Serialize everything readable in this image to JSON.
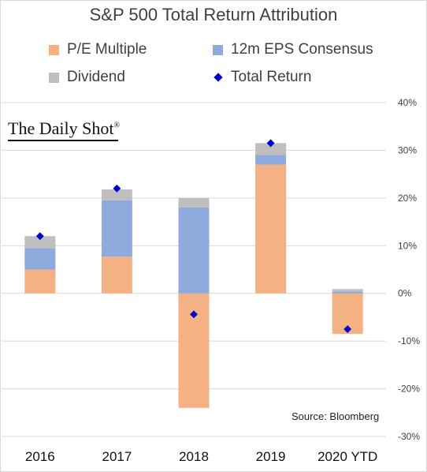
{
  "chart_data": {
    "type": "bar",
    "stacked": true,
    "title": "S&P 500 Total Return Attribution",
    "categories": [
      "2016",
      "2017",
      "2018",
      "2019",
      "2020 YTD"
    ],
    "series": [
      {
        "name": "P/E Multiple",
        "color": "#f4b183",
        "values": [
          5,
          7.7,
          -24,
          27,
          -8.5
        ]
      },
      {
        "name": "12m EPS Consensus",
        "color": "#8faadc",
        "values": [
          4.5,
          11.8,
          18,
          2,
          0.4
        ]
      },
      {
        "name": "Dividend",
        "color": "#bfbfbf",
        "values": [
          2.5,
          2.3,
          2,
          2.5,
          0.5
        ]
      }
    ],
    "total_return": {
      "name": "Total Return",
      "color": "#0000cc",
      "values": [
        12,
        22,
        -4.4,
        31.5,
        -7.5
      ]
    },
    "y_axis": {
      "position": "right",
      "ylim": [
        -30,
        40
      ],
      "ticks": [
        -30,
        -20,
        -10,
        0,
        10,
        20,
        30,
        40
      ],
      "tick_labels": [
        "-30%",
        "-20%",
        "-10%",
        "0%",
        "10%",
        "20%",
        "30%",
        "40%"
      ]
    },
    "grid": true,
    "legend_position": "top"
  },
  "watermark": "The Daily Shot",
  "watermark_mark": "®",
  "source": "Source: Bloomberg"
}
